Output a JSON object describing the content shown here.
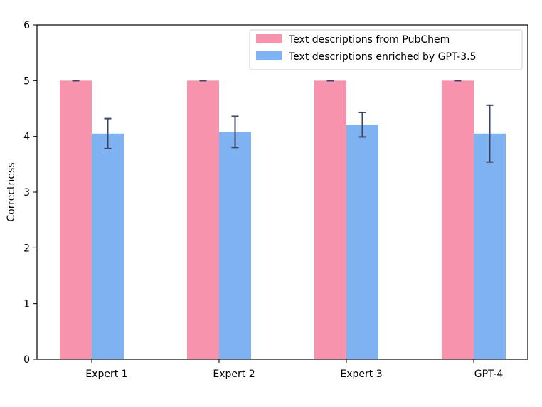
{
  "chart_data": {
    "type": "bar",
    "categories": [
      "Expert 1",
      "Expert 2",
      "Expert 3",
      "GPT-4"
    ],
    "ylabel": "Correctness",
    "xlabel": "",
    "ylim": [
      0,
      6
    ],
    "yticks": [
      0,
      1,
      2,
      3,
      4,
      5,
      6
    ],
    "grid": false,
    "legend_position": "top-right",
    "series": [
      {
        "name": "Text descriptions from PubChem",
        "color": "#f893ad",
        "values": [
          5.0,
          5.0,
          5.0,
          5.0
        ],
        "errors": [
          0.0,
          0.0,
          0.0,
          0.0
        ]
      },
      {
        "name": "Text descriptions enriched by GPT-3.5",
        "color": "#7fb2f0",
        "values": [
          4.05,
          4.08,
          4.21,
          4.05
        ],
        "errors": [
          0.27,
          0.28,
          0.22,
          0.51
        ]
      }
    ],
    "error_bar_color": "#3b4266"
  }
}
